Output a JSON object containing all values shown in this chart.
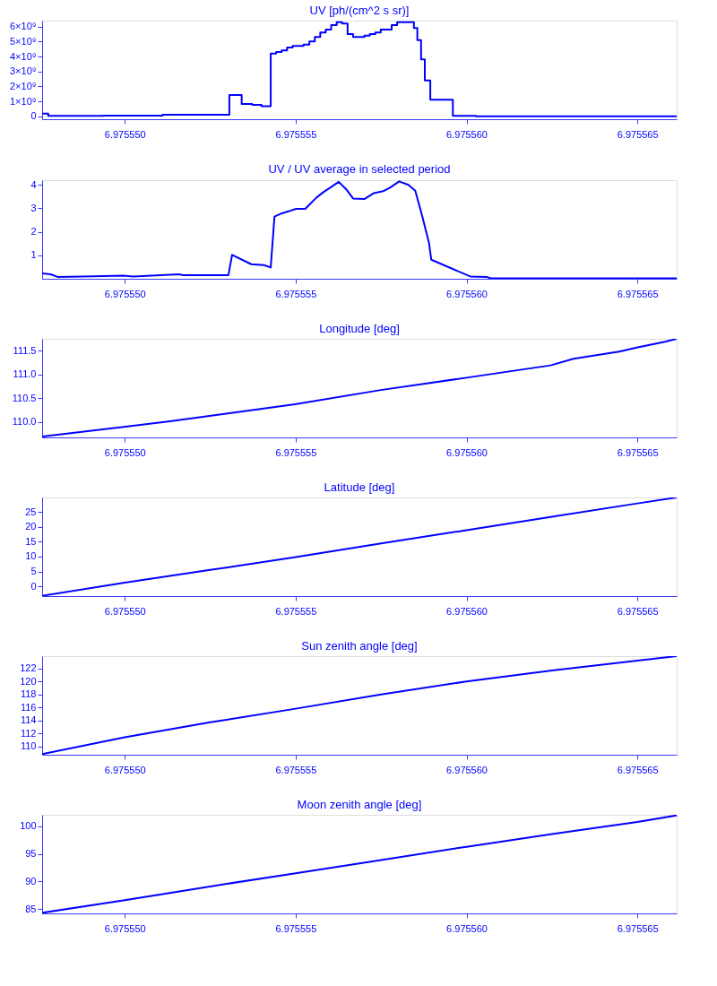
{
  "chart_data": [
    {
      "type": "step",
      "title": "UV [ph/(cm^2 s sr)]",
      "x": [
        6.97554758,
        6.97554776,
        6.97554937,
        6.97555111,
        6.97555306,
        6.97555342,
        6.97555373,
        6.975554,
        6.97555427,
        6.97555443,
        6.97555459,
        6.97555475,
        6.97555491,
        6.97555507,
        6.97555523,
        6.9755554,
        6.97555556,
        6.97555572,
        6.97555588,
        6.97555604,
        6.9755562,
        6.97555636,
        6.97555652,
        6.97555668,
        6.97555685,
        6.97555701,
        6.97555717,
        6.97555733,
        6.97555749,
        6.97555765,
        6.97555781,
        6.97555797,
        6.97555813,
        6.9755583,
        6.97555846,
        6.97555856,
        6.97555867,
        6.97555878,
        6.97555894,
        6.9755596,
        6.97556028,
        6.97556615
      ],
      "series": [
        {
          "color": "#0000ff",
          "values": [
            180000000.0,
            20000000.0,
            40000000.0,
            100000000.0,
            1420000000.0,
            820000000.0,
            760000000.0,
            670000000.0,
            4200000000.0,
            4300000000.0,
            4400000000.0,
            4600000000.0,
            4700000000.0,
            4700000000.0,
            4800000000.0,
            5000000000.0,
            5300000000.0,
            5600000000.0,
            5800000000.0,
            6100000000.0,
            6300000000.0,
            6200000000.0,
            5500000000.0,
            5300000000.0,
            5300000000.0,
            5400000000.0,
            5500000000.0,
            5600000000.0,
            5800000000.0,
            5800000000.0,
            6100000000.0,
            6300000000.0,
            6300000000.0,
            6300000000.0,
            5900000000.0,
            5100000000.0,
            3800000000.0,
            2400000000.0,
            1100000000.0,
            30000000.0,
            0,
            0
          ]
        }
      ],
      "xlim": [
        6.97554758,
        6.97556615
      ],
      "xticks": [
        {
          "value": 6.97555,
          "label": "6.975550"
        },
        {
          "value": 6.975555,
          "label": "6.975555"
        },
        {
          "value": 6.97556,
          "label": "6.975560"
        },
        {
          "value": 6.975565,
          "label": "6.975565"
        }
      ],
      "ylim": [
        -200000000.0,
        6400000000.0
      ],
      "yticks": [
        0,
        {
          "value": 1000000000.0,
          "label": "1×10⁹"
        },
        {
          "value": 2000000000.0,
          "label": "2×10⁹"
        },
        {
          "value": 3000000000.0,
          "label": "3×10⁹"
        },
        {
          "value": 4000000000.0,
          "label": "4×10⁹"
        },
        {
          "value": 5000000000.0,
          "label": "5×10⁹"
        },
        {
          "value": 6000000000.0,
          "label": "6×10⁹"
        }
      ],
      "grid": false
    },
    {
      "type": "line",
      "title": "UV / UV average in selected period",
      "x": [
        6.97554758,
        6.97554783,
        6.97554803,
        6.97554877,
        6.97554997,
        6.97555024,
        6.97555105,
        6.97555158,
        6.97555172,
        6.97555303,
        6.97555314,
        6.9755537,
        6.97555407,
        6.97555427,
        6.97555438,
        6.9755546,
        6.97555481,
        6.97555501,
        6.97555528,
        6.97555541,
        6.97555561,
        6.97555581,
        6.97555601,
        6.97555626,
        6.97555648,
        6.97555668,
        6.97555702,
        6.97555729,
        6.97555756,
        6.97555776,
        6.97555803,
        6.9755583,
        6.9755585,
        6.9755587,
        6.9755589,
        6.97555897,
        6.97556011,
        6.97556058,
        6.97556071,
        6.97556615
      ],
      "series": [
        {
          "color": "#0000ff",
          "values": [
            0.23,
            0.19,
            0.08,
            0.1,
            0.13,
            0.1,
            0.15,
            0.19,
            0.15,
            0.15,
            1.02,
            0.62,
            0.58,
            0.48,
            2.65,
            2.79,
            2.88,
            2.98,
            2.98,
            3.17,
            3.46,
            3.69,
            3.88,
            4.13,
            3.81,
            3.42,
            3.4,
            3.65,
            3.73,
            3.88,
            4.15,
            4.0,
            3.75,
            2.69,
            1.54,
            0.81,
            0.1,
            0.08,
            0.02,
            0.02
          ]
        }
      ],
      "xlim": [
        6.97554758,
        6.97556615
      ],
      "xticks": [
        {
          "value": 6.97555,
          "label": "6.975550"
        },
        {
          "value": 6.975555,
          "label": "6.975555"
        },
        {
          "value": 6.97556,
          "label": "6.975560"
        },
        {
          "value": 6.975565,
          "label": "6.975565"
        }
      ],
      "ylim": [
        0,
        4.2
      ],
      "yticks": [
        1,
        2,
        3,
        4
      ],
      "grid": false
    },
    {
      "type": "line",
      "title": "Longitude [deg]",
      "x": [
        6.97554758,
        6.97554997,
        6.97555132,
        6.97555306,
        6.97555498,
        6.97555749,
        6.97556,
        6.97556246,
        6.97556313,
        6.97556447,
        6.97556501,
        6.97556581,
        6.97556615
      ],
      "series": [
        {
          "color": "#0000ff",
          "values": [
            109.69,
            109.89,
            110.01,
            110.18,
            110.37,
            110.67,
            110.93,
            111.19,
            111.33,
            111.48,
            111.57,
            111.69,
            111.75
          ]
        }
      ],
      "xlim": [
        6.97554758,
        6.97556615
      ],
      "xticks": [
        {
          "value": 6.97555,
          "label": "6.975550"
        },
        {
          "value": 6.975555,
          "label": "6.975555"
        },
        {
          "value": 6.97556,
          "label": "6.975560"
        },
        {
          "value": 6.975565,
          "label": "6.975565"
        }
      ],
      "ylim": [
        109.67,
        111.75
      ],
      "yticks": [
        {
          "value": 110,
          "label": "110.0"
        },
        110.5,
        {
          "value": 111,
          "label": "111.0"
        },
        111.5
      ],
      "grid": false
    },
    {
      "type": "line",
      "title": "Latitude [deg]",
      "x": [
        6.97554758,
        6.97555,
        6.9755525,
        6.975555,
        6.9755575,
        6.97556,
        6.9755625,
        6.975565,
        6.97556615
      ],
      "series": [
        {
          "color": "#0000ff",
          "values": [
            -3.2,
            1.2,
            5.5,
            9.8,
            14.4,
            18.9,
            23.4,
            27.9,
            29.9
          ]
        }
      ],
      "xlim": [
        6.97554758,
        6.97556615
      ],
      "xticks": [
        {
          "value": 6.97555,
          "label": "6.975550"
        },
        {
          "value": 6.975555,
          "label": "6.975555"
        },
        {
          "value": 6.97556,
          "label": "6.975560"
        },
        {
          "value": 6.975565,
          "label": "6.975565"
        }
      ],
      "ylim": [
        -3.3,
        29.9
      ],
      "yticks": [
        0,
        5,
        10,
        15,
        20,
        25
      ],
      "grid": false
    },
    {
      "type": "line",
      "title": "Sun zenith angle [deg]",
      "x": [
        6.97554758,
        6.97555,
        6.9755525,
        6.975555,
        6.9755575,
        6.97556,
        6.9755625,
        6.975565,
        6.97556615
      ],
      "series": [
        {
          "color": "#0000ff",
          "values": [
            108.8,
            111.4,
            113.7,
            115.8,
            118.0,
            120.0,
            121.7,
            123.2,
            123.9
          ]
        }
      ],
      "xlim": [
        6.97554758,
        6.97556615
      ],
      "xticks": [
        {
          "value": 6.97555,
          "label": "6.975550"
        },
        {
          "value": 6.975555,
          "label": "6.975555"
        },
        {
          "value": 6.97556,
          "label": "6.975560"
        },
        {
          "value": 6.975565,
          "label": "6.975565"
        }
      ],
      "ylim": [
        108.7,
        123.9
      ],
      "yticks": [
        110,
        112,
        114,
        116,
        118,
        120,
        122
      ],
      "grid": false
    },
    {
      "type": "line",
      "title": "Moon zenith angle [deg]",
      "x": [
        6.97554758,
        6.97555,
        6.9755525,
        6.975555,
        6.9755575,
        6.97556,
        6.9755625,
        6.975565,
        6.97556615
      ],
      "series": [
        {
          "color": "#0000ff",
          "values": [
            84.3,
            86.6,
            89.1,
            91.5,
            93.9,
            96.3,
            98.6,
            100.8,
            102.0
          ]
        }
      ],
      "xlim": [
        6.97554758,
        6.97556615
      ],
      "xticks": [
        {
          "value": 6.97555,
          "label": "6.975550"
        },
        {
          "value": 6.975555,
          "label": "6.975555"
        },
        {
          "value": 6.97556,
          "label": "6.975560"
        },
        {
          "value": 6.975565,
          "label": "6.975565"
        }
      ],
      "ylim": [
        84.2,
        102.1
      ],
      "yticks": [
        85,
        90,
        95,
        100
      ],
      "grid": false
    }
  ]
}
